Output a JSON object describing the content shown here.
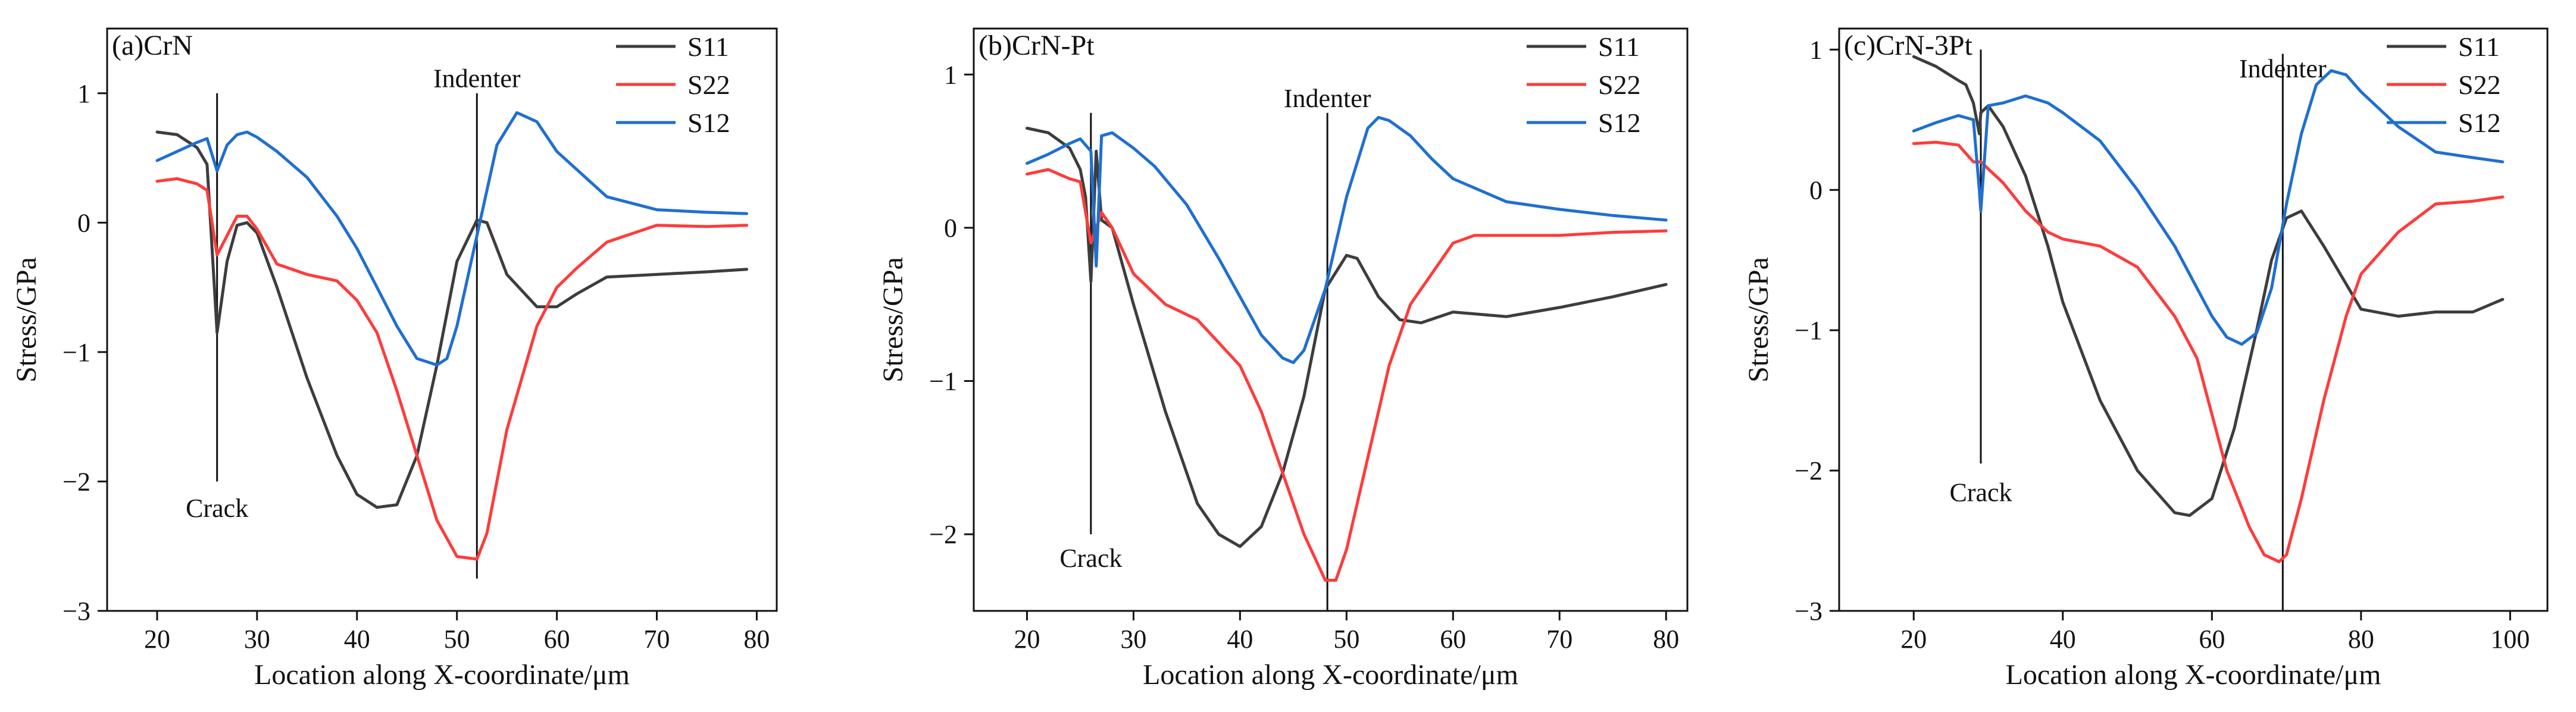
{
  "figure": {
    "colors": {
      "S11": "#3d3d3d",
      "S22": "#ff3b3b",
      "S12": "#1f6fd1",
      "axis": "#111111"
    }
  },
  "chart_data": [
    {
      "type": "line",
      "title": "(a)CrN",
      "xlabel": "Location along X-coordinate/μm",
      "ylabel": "Stress/GPa",
      "xlim": [
        15,
        82
      ],
      "ylim": [
        -3,
        1.5
      ],
      "xticks": [
        20,
        30,
        40,
        50,
        60,
        70,
        80
      ],
      "yticks": [
        -3,
        -2,
        -1,
        0,
        1
      ],
      "xtick_labels": [
        "20",
        "30",
        "40",
        "50",
        "60",
        "70",
        "80"
      ],
      "ytick_labels": [
        "−3",
        "−2",
        "−1",
        "0",
        "1"
      ],
      "legend": [
        "S11",
        "S22",
        "S12"
      ],
      "annotations": [
        {
          "text": "Crack",
          "line_x": 26,
          "line_y": [
            -2.0,
            1.0
          ],
          "label_at": [
            26,
            -2.2
          ]
        },
        {
          "text": "Indenter",
          "line_x": 52,
          "line_y": [
            -2.75,
            1.0
          ],
          "label_at": [
            52,
            1.12
          ]
        }
      ],
      "series": [
        {
          "name": "S11",
          "x": [
            20,
            22,
            24,
            25,
            26,
            27,
            28,
            29,
            30,
            32,
            35,
            38,
            40,
            42,
            44,
            46,
            48,
            50,
            52,
            53,
            55,
            58,
            60,
            62,
            65,
            70,
            75,
            79
          ],
          "y": [
            0.7,
            0.68,
            0.58,
            0.45,
            -0.85,
            -0.3,
            -0.02,
            0.0,
            -0.08,
            -0.5,
            -1.2,
            -1.8,
            -2.1,
            -2.2,
            -2.18,
            -1.8,
            -1.1,
            -0.3,
            0.02,
            0.0,
            -0.4,
            -0.65,
            -0.65,
            -0.55,
            -0.42,
            -0.4,
            -0.38,
            -0.36
          ]
        },
        {
          "name": "S22",
          "x": [
            20,
            22,
            24,
            25,
            26,
            27,
            28,
            29,
            30,
            32,
            35,
            38,
            40,
            42,
            44,
            46,
            48,
            50,
            52,
            53,
            55,
            58,
            60,
            62,
            65,
            70,
            75,
            79
          ],
          "y": [
            0.32,
            0.34,
            0.3,
            0.25,
            -0.25,
            -0.1,
            0.05,
            0.05,
            -0.05,
            -0.32,
            -0.4,
            -0.45,
            -0.6,
            -0.85,
            -1.3,
            -1.8,
            -2.3,
            -2.58,
            -2.6,
            -2.4,
            -1.6,
            -0.8,
            -0.5,
            -0.35,
            -0.15,
            -0.02,
            -0.03,
            -0.02
          ]
        },
        {
          "name": "S12",
          "x": [
            20,
            22,
            24,
            25,
            26,
            27,
            28,
            29,
            30,
            32,
            35,
            38,
            40,
            42,
            44,
            46,
            48,
            49,
            50,
            52,
            54,
            56,
            58,
            60,
            65,
            70,
            75,
            79
          ],
          "y": [
            0.48,
            0.55,
            0.62,
            0.65,
            0.4,
            0.6,
            0.68,
            0.7,
            0.66,
            0.55,
            0.35,
            0.05,
            -0.2,
            -0.5,
            -0.8,
            -1.05,
            -1.1,
            -1.05,
            -0.8,
            -0.1,
            0.6,
            0.85,
            0.78,
            0.55,
            0.2,
            0.1,
            0.08,
            0.07
          ]
        }
      ]
    },
    {
      "type": "line",
      "title": "(b)CrN-Pt",
      "xlabel": "Location along X-coordinate/μm",
      "ylabel": "Stress/GPa",
      "xlim": [
        15,
        82
      ],
      "ylim": [
        -2.5,
        1.3
      ],
      "xticks": [
        20,
        30,
        40,
        50,
        60,
        70,
        80
      ],
      "yticks": [
        -2,
        -1,
        0,
        1
      ],
      "xtick_labels": [
        "20",
        "30",
        "40",
        "50",
        "60",
        "70",
        "80"
      ],
      "ytick_labels": [
        "−2",
        "−1",
        "0",
        "1"
      ],
      "legend": [
        "S11",
        "S22",
        "S12"
      ],
      "annotations": [
        {
          "text": "Crack",
          "line_x": 26,
          "line_y": [
            -2.0,
            0.75
          ],
          "label_at": [
            26,
            -2.15
          ]
        },
        {
          "text": "Indenter",
          "line_x": 48.2,
          "line_y": [
            -2.5,
            0.75
          ],
          "label_at": [
            48.2,
            0.85
          ]
        }
      ],
      "series": [
        {
          "name": "S11",
          "x": [
            20,
            22,
            24,
            25,
            25.5,
            26,
            26.5,
            27,
            28,
            30,
            33,
            36,
            38,
            40,
            42,
            44,
            46,
            48,
            50,
            51,
            53,
            55,
            57,
            60,
            65,
            70,
            75,
            80
          ],
          "y": [
            0.65,
            0.62,
            0.52,
            0.38,
            0.2,
            -0.35,
            0.5,
            0.05,
            0.0,
            -0.5,
            -1.2,
            -1.8,
            -2.0,
            -2.08,
            -1.95,
            -1.6,
            -1.1,
            -0.4,
            -0.18,
            -0.2,
            -0.45,
            -0.6,
            -0.62,
            -0.55,
            -0.58,
            -0.52,
            -0.45,
            -0.37
          ]
        },
        {
          "name": "S22",
          "x": [
            20,
            22,
            24,
            25,
            26,
            26.5,
            27,
            28,
            30,
            33,
            36,
            38,
            40,
            42,
            44,
            46,
            48,
            49,
            50,
            52,
            54,
            56,
            58,
            60,
            62,
            65,
            70,
            75,
            80
          ],
          "y": [
            0.35,
            0.38,
            0.32,
            0.3,
            -0.1,
            0.0,
            0.1,
            0.0,
            -0.3,
            -0.5,
            -0.6,
            -0.75,
            -0.9,
            -1.2,
            -1.6,
            -2.0,
            -2.3,
            -2.3,
            -2.1,
            -1.5,
            -0.9,
            -0.5,
            -0.3,
            -0.1,
            -0.05,
            -0.05,
            -0.05,
            -0.03,
            -0.02
          ]
        },
        {
          "name": "S12",
          "x": [
            20,
            22,
            24,
            25,
            26,
            26.5,
            27,
            28,
            30,
            32,
            35,
            38,
            40,
            42,
            44,
            45,
            46,
            48,
            50,
            52,
            53,
            54,
            56,
            58,
            60,
            65,
            70,
            75,
            80
          ],
          "y": [
            0.42,
            0.48,
            0.55,
            0.58,
            0.5,
            -0.25,
            0.6,
            0.62,
            0.52,
            0.4,
            0.15,
            -0.2,
            -0.45,
            -0.7,
            -0.85,
            -0.88,
            -0.8,
            -0.4,
            0.2,
            0.65,
            0.72,
            0.7,
            0.6,
            0.45,
            0.32,
            0.17,
            0.12,
            0.08,
            0.05
          ]
        }
      ]
    },
    {
      "type": "line",
      "title": "(c)CrN-3Pt",
      "xlabel": "Location along X-coordinate/μm",
      "ylabel": "Stress/GPa",
      "xlim": [
        10,
        105
      ],
      "ylim": [
        -3,
        1.15
      ],
      "xticks": [
        20,
        40,
        60,
        80,
        100
      ],
      "yticks": [
        -3,
        -2,
        -1,
        0,
        1
      ],
      "xtick_labels": [
        "20",
        "40",
        "60",
        "80",
        "100"
      ],
      "ytick_labels": [
        "−3",
        "−2",
        "−1",
        "0",
        "1"
      ],
      "legend": [
        "S11",
        "S22",
        "S12"
      ],
      "annotations": [
        {
          "text": "Crack",
          "line_x": 29,
          "line_y": [
            -1.95,
            1.0
          ],
          "label_at": [
            29,
            -2.15
          ]
        },
        {
          "text": "Indenter",
          "line_x": 69.5,
          "line_y": [
            -3.0,
            0.97
          ],
          "label_at": [
            69.5,
            0.87
          ]
        }
      ],
      "series": [
        {
          "name": "S11",
          "x": [
            20,
            23,
            26,
            27,
            28,
            28.8,
            29,
            30,
            32,
            35,
            38,
            40,
            45,
            50,
            55,
            57,
            60,
            63,
            66,
            68,
            70,
            72,
            75,
            80,
            85,
            90,
            95,
            99
          ],
          "y": [
            0.95,
            0.88,
            0.78,
            0.75,
            0.62,
            0.4,
            0.55,
            0.6,
            0.45,
            0.1,
            -0.4,
            -0.8,
            -1.5,
            -2.0,
            -2.3,
            -2.32,
            -2.2,
            -1.7,
            -1.0,
            -0.5,
            -0.2,
            -0.15,
            -0.4,
            -0.85,
            -0.9,
            -0.87,
            -0.87,
            -0.78
          ]
        },
        {
          "name": "S22",
          "x": [
            20,
            23,
            26,
            28,
            29,
            30,
            32,
            35,
            38,
            40,
            45,
            50,
            55,
            58,
            60,
            62,
            65,
            67,
            69,
            70,
            72,
            75,
            78,
            80,
            85,
            90,
            95,
            99
          ],
          "y": [
            0.33,
            0.34,
            0.32,
            0.2,
            0.2,
            0.15,
            0.05,
            -0.15,
            -0.3,
            -0.35,
            -0.4,
            -0.55,
            -0.9,
            -1.2,
            -1.6,
            -2.0,
            -2.4,
            -2.6,
            -2.65,
            -2.6,
            -2.2,
            -1.5,
            -0.9,
            -0.6,
            -0.3,
            -0.1,
            -0.08,
            -0.05
          ]
        },
        {
          "name": "S12",
          "x": [
            20,
            23,
            26,
            28,
            28.8,
            29,
            30,
            32,
            35,
            38,
            40,
            45,
            50,
            55,
            60,
            62,
            64,
            66,
            68,
            70,
            72,
            74,
            76,
            78,
            80,
            85,
            90,
            95,
            99
          ],
          "y": [
            0.42,
            0.48,
            0.53,
            0.5,
            0.0,
            -0.15,
            0.6,
            0.62,
            0.67,
            0.62,
            0.55,
            0.35,
            0.0,
            -0.4,
            -0.9,
            -1.05,
            -1.1,
            -1.02,
            -0.7,
            -0.1,
            0.4,
            0.75,
            0.85,
            0.82,
            0.7,
            0.45,
            0.27,
            0.23,
            0.2
          ]
        }
      ]
    }
  ]
}
